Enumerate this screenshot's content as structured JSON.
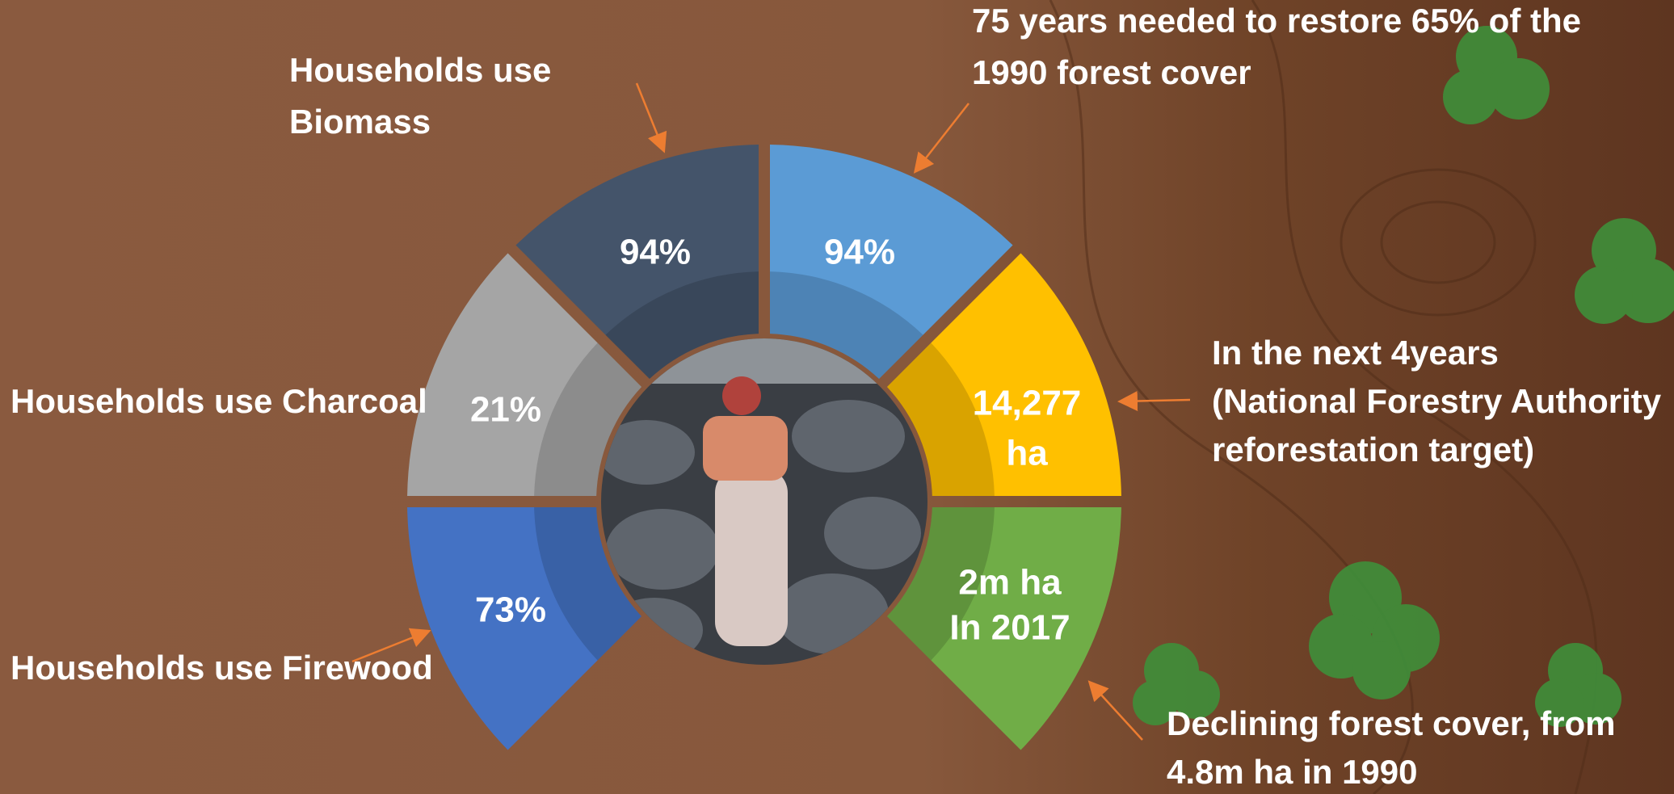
{
  "segments": [
    {
      "color": "#4472c4",
      "value": [
        "73%"
      ],
      "annotation": [
        "Households use Firewood"
      ]
    },
    {
      "color": "#a5a5a5",
      "value": [
        "21%"
      ],
      "annotation": [
        "Households use Charcoal"
      ]
    },
    {
      "color": "#44546a",
      "value": [
        "94%"
      ],
      "annotation": [
        "Households use",
        "Biomass"
      ]
    },
    {
      "color": "#5b9bd5",
      "value": [
        "94%"
      ],
      "annotation": [
        "75 years needed to restore 65% of the",
        "1990 forest cover"
      ]
    },
    {
      "color": "#ffc000",
      "value": [
        "14,277",
        "ha"
      ],
      "annotation": [
        "In the next 4years",
        "(National Forestry Authority",
        "reforestation target)"
      ]
    },
    {
      "color": "#70ad47",
      "value": [
        "2m ha",
        "In 2017"
      ],
      "annotation": [
        "Declining forest cover, from",
        "4.8m ha in 1990"
      ]
    }
  ]
}
